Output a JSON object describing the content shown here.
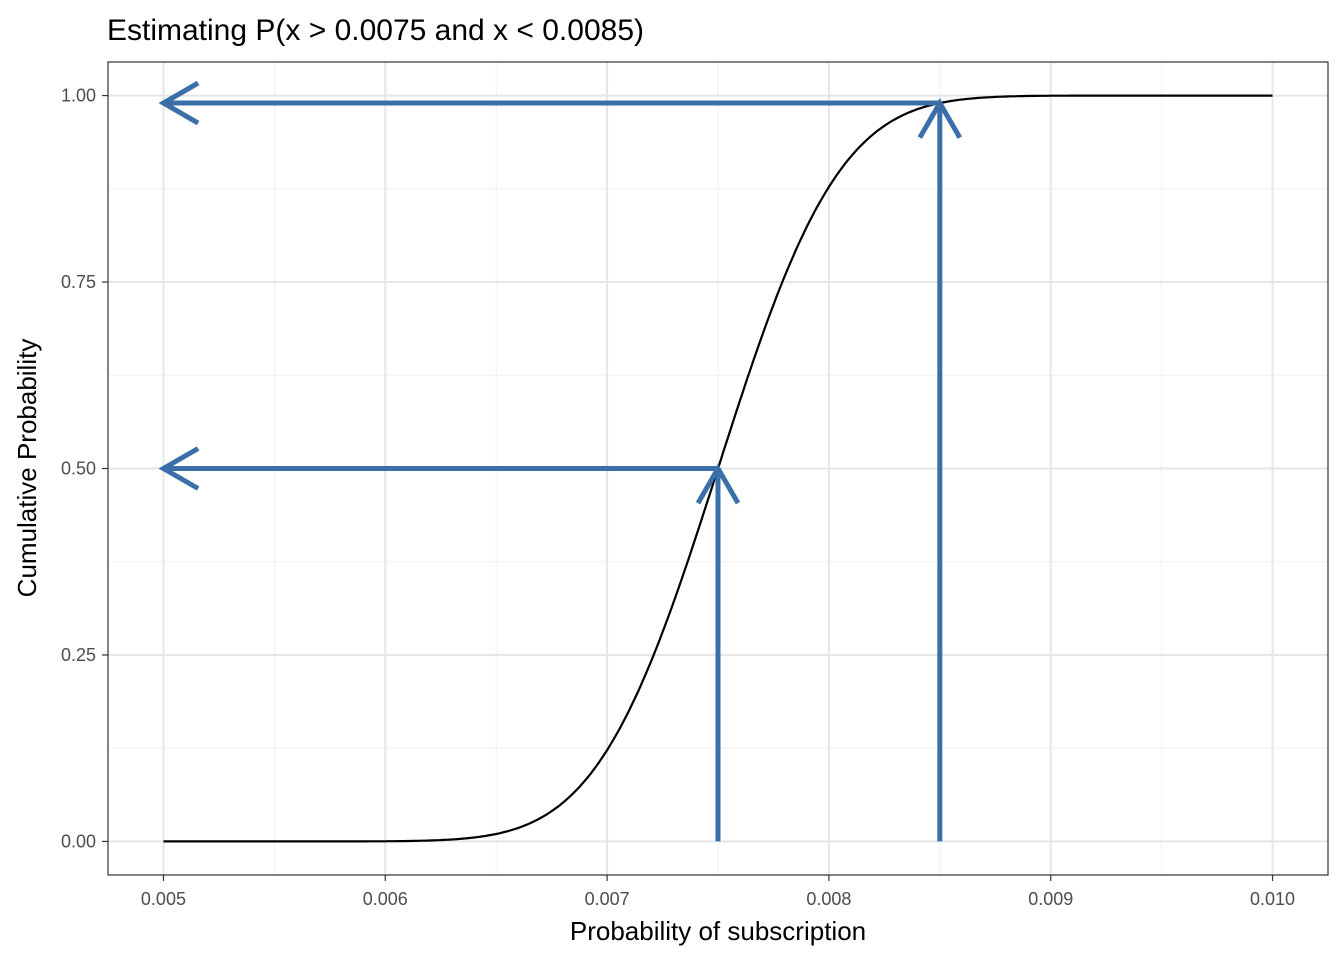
{
  "chart_data": {
    "type": "line",
    "title": "Estimating P(x > 0.0075 and x < 0.0085)",
    "xlabel": "Probability of subscription",
    "ylabel": "Cumulative Probability",
    "xlim": [
      0.00475,
      0.01025
    ],
    "ylim": [
      -0.045,
      1.045
    ],
    "x_ticks": [
      0.005,
      0.006,
      0.007,
      0.008,
      0.009,
      0.01
    ],
    "x_tick_labels": [
      "0.005",
      "0.006",
      "0.007",
      "0.008",
      "0.009",
      "0.010"
    ],
    "y_ticks": [
      0,
      0.25,
      0.5,
      0.75,
      1.0
    ],
    "y_tick_labels": [
      "0.00",
      "0.25",
      "0.50",
      "0.75",
      "1.00"
    ],
    "grid": true,
    "curve": {
      "name": "CDF",
      "color": "#000000",
      "distribution": {
        "family": "normal",
        "mean": 0.0075,
        "sd": 0.00043
      },
      "x": [
        0.005,
        0.0055,
        0.006,
        0.0065,
        0.00675,
        0.007,
        0.00725,
        0.0075,
        0.00775,
        0.008,
        0.00825,
        0.0085,
        0.009,
        0.0095,
        0.01
      ],
      "y": [
        0,
        0,
        0.0002,
        0.01,
        0.041,
        0.123,
        0.281,
        0.5,
        0.719,
        0.877,
        0.959,
        0.99,
        1.0,
        1.0,
        1.0
      ]
    },
    "arrows": [
      {
        "name": "up-0.0075",
        "from": [
          0.0075,
          0
        ],
        "to": [
          0.0075,
          0.5
        ]
      },
      {
        "name": "left-0.5",
        "from": [
          0.0075,
          0.5
        ],
        "to": [
          0.005,
          0.5
        ]
      },
      {
        "name": "up-0.0085",
        "from": [
          0.0085,
          0
        ],
        "to": [
          0.0085,
          0.99
        ]
      },
      {
        "name": "left-0.99",
        "from": [
          0.0085,
          0.99
        ],
        "to": [
          0.005,
          0.99
        ]
      }
    ],
    "arrow_color": "#3B6FA8"
  }
}
